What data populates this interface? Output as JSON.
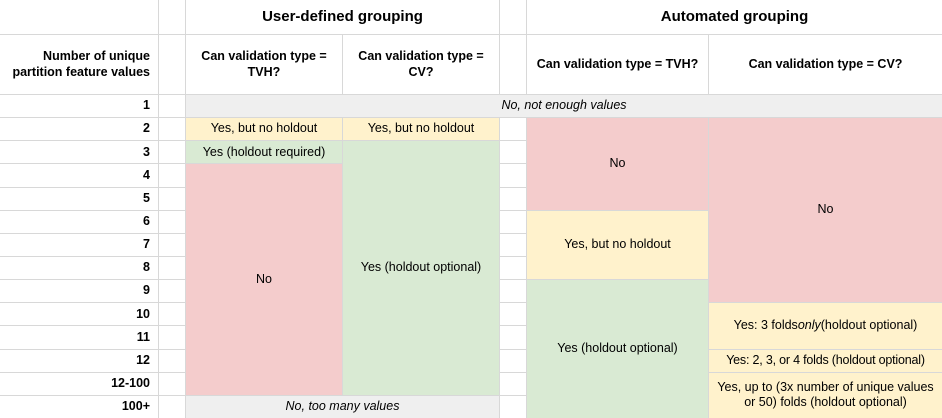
{
  "titles": {
    "user": "User-defined grouping",
    "auto": "Automated grouping"
  },
  "row_header": "Number of unique\npartition feature values",
  "col_headers": {
    "user_tvh": "Can validation type =\nTVH?",
    "user_cv": "Can validation type =\nCV?",
    "auto_tvh": "Can validation type = TVH?",
    "auto_cv": "Can validation type = CV?"
  },
  "row_labels": [
    "1",
    "2",
    "3",
    "4",
    "5",
    "6",
    "7",
    "8",
    "9",
    "10",
    "11",
    "12",
    "12-100",
    "100+"
  ],
  "cells": {
    "not_enough_values": "No, not enough values",
    "too_many_values": "No, too many values",
    "user_tvh_row2": "Yes, but no holdout",
    "user_cv_row2": "Yes, but no holdout",
    "user_tvh_row3": "Yes (holdout required)",
    "user_tvh_no": "No",
    "user_cv_yes": "Yes (holdout optional)",
    "auto_tvh_no": "No",
    "auto_tvh_partial": "Yes, but no holdout",
    "auto_tvh_yes": "Yes (holdout optional)",
    "auto_cv_no": "No",
    "auto_cv_3folds_prefix": "Yes: 3 folds ",
    "auto_cv_3folds_emphasis": "only",
    "auto_cv_3folds_suffix": " (holdout optional)",
    "auto_cv_234folds": "Yes: 2, 3, or 4 folds (holdout optional)",
    "auto_cv_upto": "Yes, up to (3x number of unique values or 50) folds (holdout optional)"
  },
  "colors": {
    "yes_with_caveat": "#fff2cc",
    "no": "#f4cccc",
    "yes": "#d9ead3",
    "not_applicable": "#efefef",
    "gridline": "#d8d8d8"
  }
}
